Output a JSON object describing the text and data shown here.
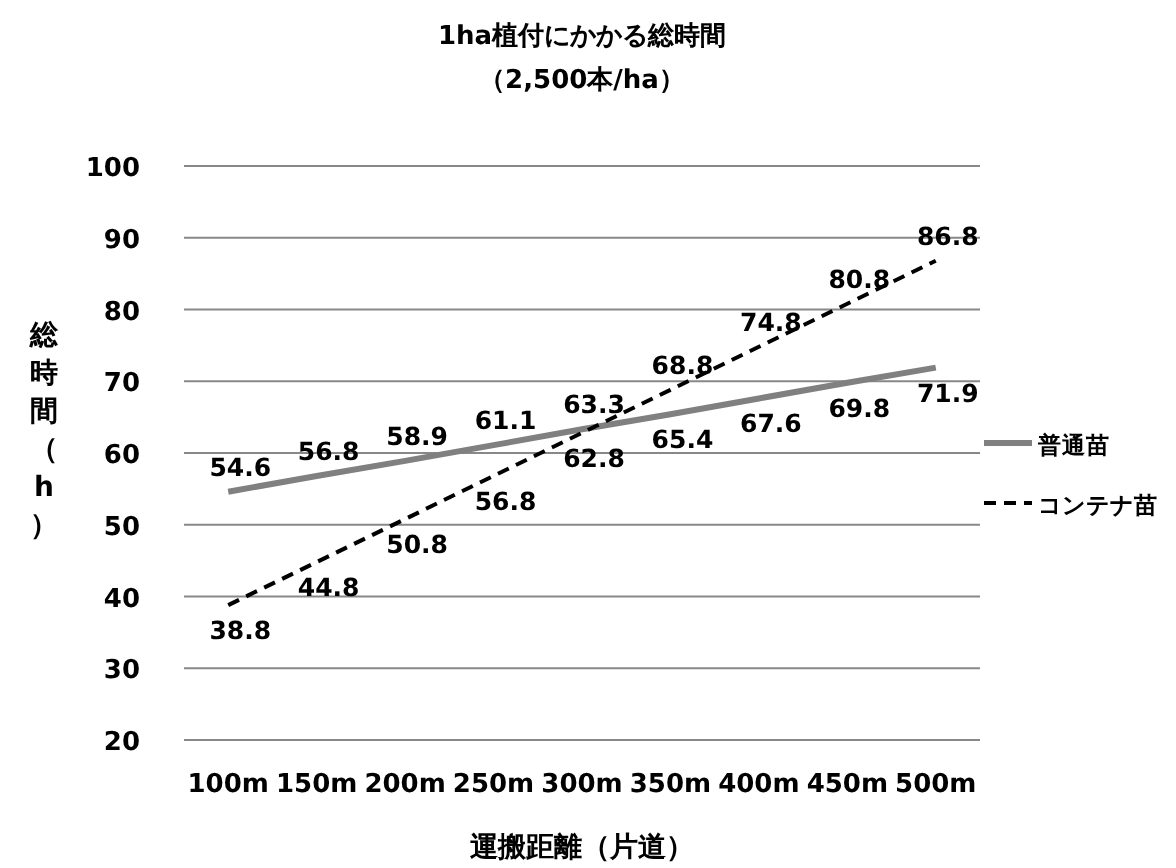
{
  "chart_data": {
    "type": "line",
    "title": "1ha植付にかかる総時間",
    "subtitle": "（2,500本/ha）",
    "xlabel": "運搬距離（片道）",
    "ylabel": "総時間（h）",
    "categories": [
      "100m",
      "150m",
      "200m",
      "250m",
      "300m",
      "350m",
      "400m",
      "450m",
      "500m"
    ],
    "series": [
      {
        "name": "普通苗",
        "color": "#808080",
        "line_style": "solid",
        "values": [
          54.6,
          56.8,
          58.9,
          61.1,
          63.3,
          65.4,
          67.6,
          69.8,
          71.9
        ]
      },
      {
        "name": "コンテナ苗",
        "color": "#000000",
        "line_style": "dashed",
        "values": [
          38.8,
          44.8,
          50.8,
          56.8,
          62.8,
          68.8,
          74.8,
          80.8,
          86.8
        ]
      }
    ],
    "ylim": [
      20,
      100
    ],
    "yticks": [
      20,
      30,
      40,
      50,
      60,
      70,
      80,
      90,
      100
    ],
    "grid": "y",
    "legend": "right",
    "marker": "none",
    "data_labels": true
  }
}
